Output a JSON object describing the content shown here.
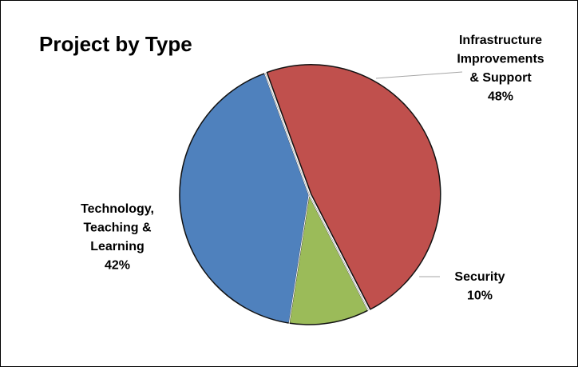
{
  "chart_data": {
    "type": "pie",
    "title": "Project by Type",
    "slices": [
      {
        "label_lines": [
          "Infrastructure",
          "Improvements",
          "& Support"
        ],
        "percent_label": "48%",
        "value": 48,
        "color": "#C0504D"
      },
      {
        "label_lines": [
          "Security"
        ],
        "percent_label": "10%",
        "value": 10,
        "color": "#9BBB59"
      },
      {
        "label_lines": [
          "Technology,",
          "Teaching &",
          "Learning"
        ],
        "percent_label": "42%",
        "value": 42,
        "color": "#4F81BD"
      }
    ],
    "legend": "none",
    "data_labels": "outside with leader lines"
  }
}
